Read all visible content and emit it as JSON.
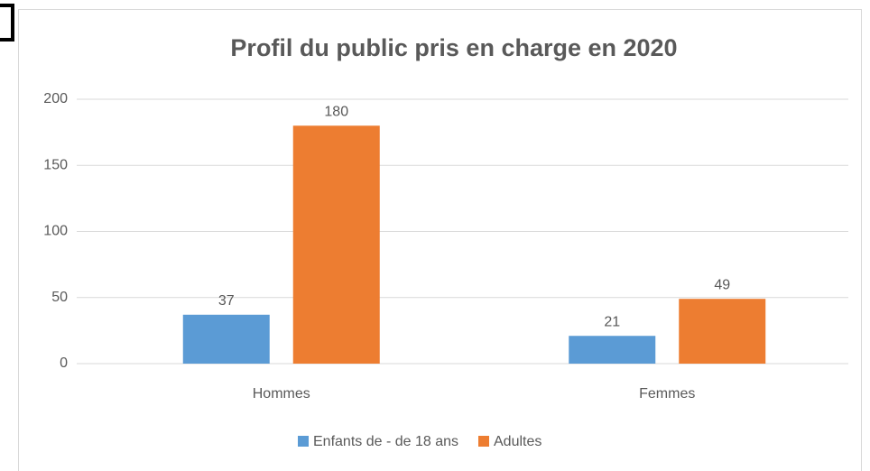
{
  "chart_data": {
    "type": "bar",
    "title": "Profil du public pris en charge en 2020",
    "categories": [
      "Hommes",
      "Femmes"
    ],
    "series": [
      {
        "name": "Enfants de - de 18 ans",
        "color": "#5b9bd5",
        "values": [
          37,
          21
        ]
      },
      {
        "name": "Adultes",
        "color": "#ed7d31",
        "values": [
          180,
          49
        ]
      }
    ],
    "ylim": [
      0,
      200
    ],
    "yticks": [
      0,
      50,
      100,
      150,
      200
    ],
    "grid": true,
    "legend": "bottom"
  }
}
